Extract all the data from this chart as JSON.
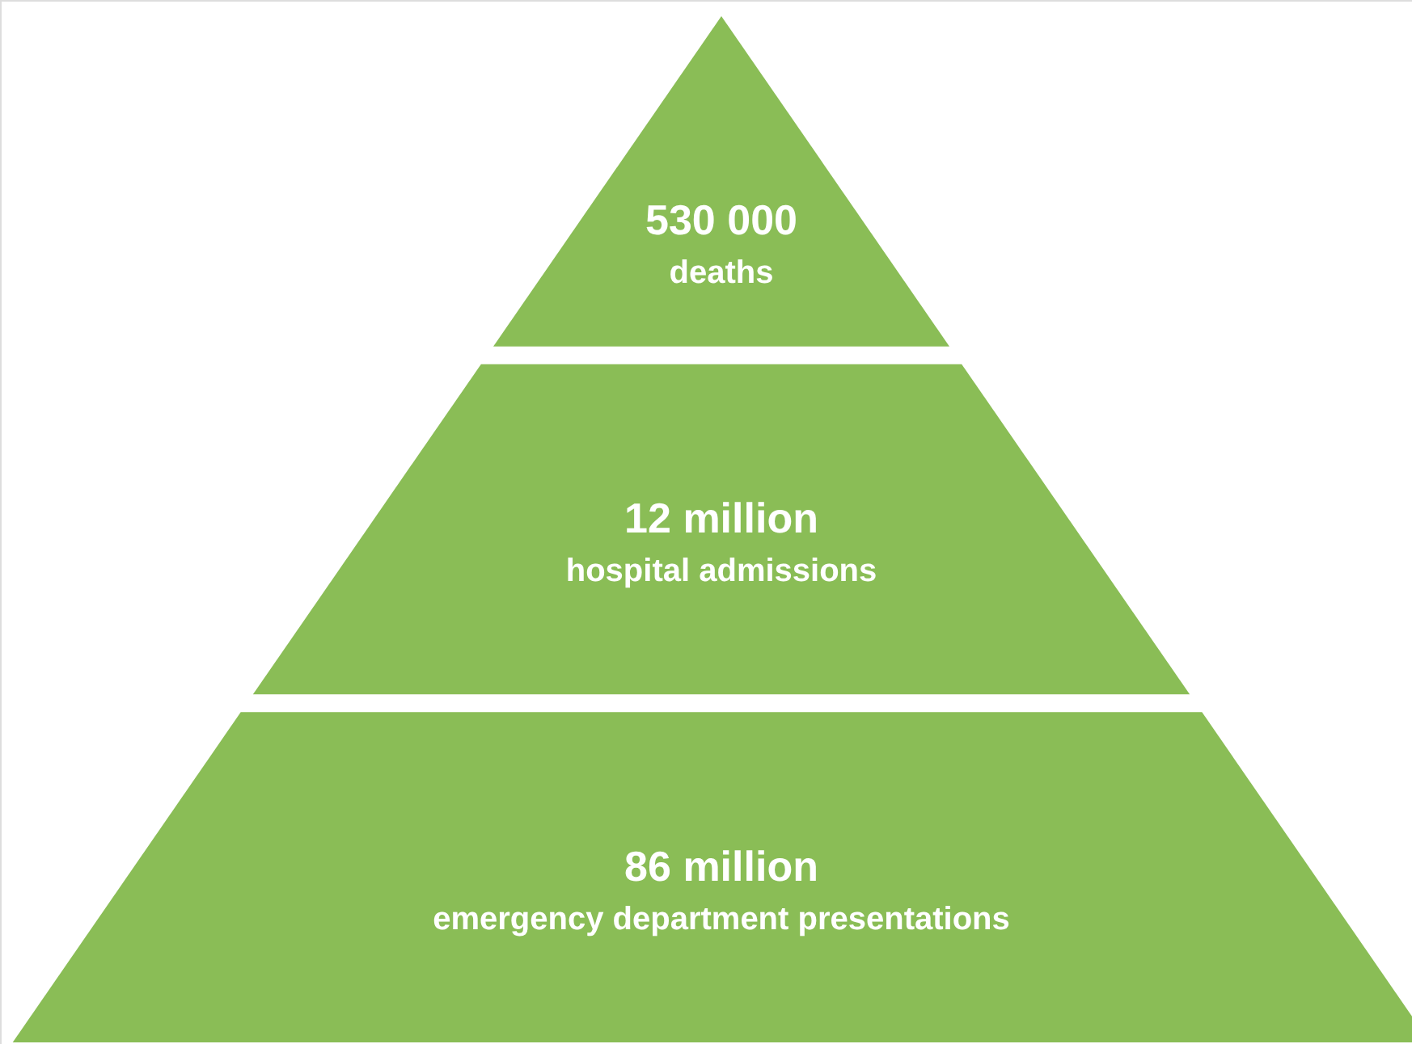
{
  "chart_data": {
    "type": "other",
    "categories": [
      "deaths",
      "hospital admissions",
      "emergency department presentations"
    ],
    "values": [
      530000,
      12000000,
      86000000
    ],
    "value_labels": [
      "530 000",
      "12 million",
      "86 million"
    ],
    "colors": [
      "#8abd56",
      "#8abd56",
      "#8abd56"
    ]
  }
}
